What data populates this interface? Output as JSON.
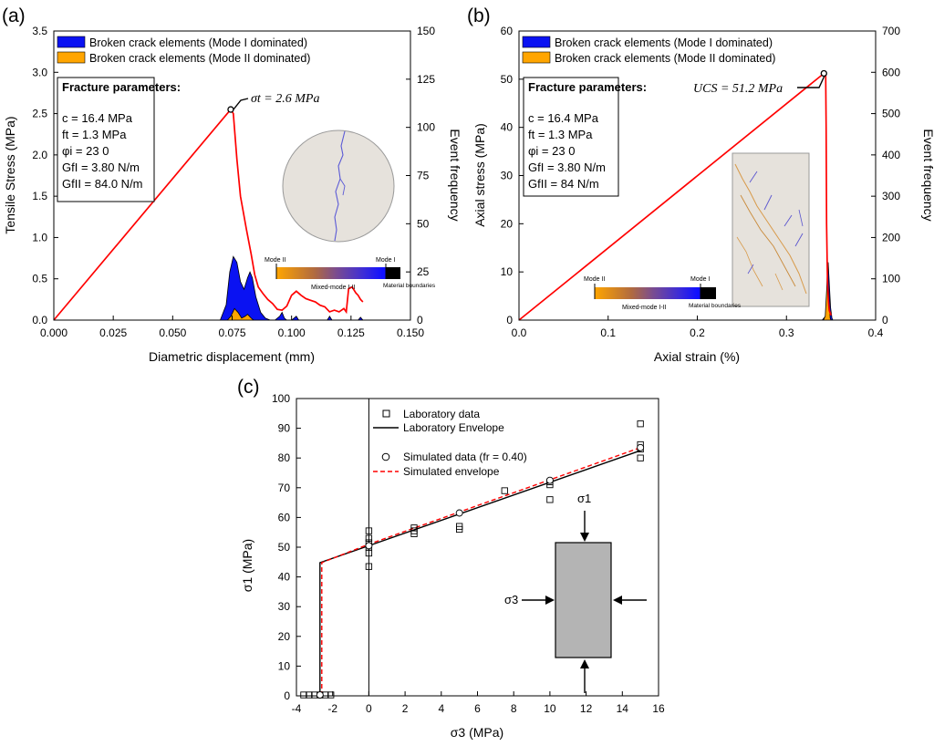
{
  "colors": {
    "mode_i_fill": "#0a12f2",
    "mode_ii_fill": "#ffa500",
    "curve": "#ff0000",
    "sim_envelope": "#ff0000",
    "specimen_fill": "#b4b4b4",
    "disc_fill": "#e6e2dc"
  },
  "panel_labels": [
    "(a)",
    "(b)",
    "(c)"
  ],
  "chart_data": [
    {
      "type": "line",
      "panel": "(a)",
      "title": "",
      "xlabel": "Diametric displacement (mm)",
      "ylabel": "Tensile Stress (MPa)",
      "y2label": "Event frequency",
      "xlim": [
        0.0,
        0.15
      ],
      "ylim": [
        0.0,
        3.5
      ],
      "y2lim": [
        0,
        150
      ],
      "xticks": [
        "0.000",
        "0.025",
        "0.050",
        "0.075",
        "0.100",
        "0.125",
        "0.150"
      ],
      "yticks": [
        "0.0",
        "0.5",
        "1.0",
        "1.5",
        "2.0",
        "2.5",
        "3.0",
        "3.5"
      ],
      "y2ticks": [
        "0",
        "25",
        "50",
        "75",
        "100",
        "125",
        "150"
      ],
      "legend": [
        "Broken crack elements (Mode I dominated)",
        "Broken crack elements (Mode II dominated)"
      ],
      "params": {
        "heading": "Fracture parameters:",
        "lines": [
          "c = 16.4 MPa",
          "ft = 1.3 MPa",
          "φi = 23 0",
          "GfI = 3.80 N/m",
          "GfII = 84.0 N/m"
        ]
      },
      "annotation": "σt = 2.6 MPa",
      "colorbar": {
        "left": "Mode II",
        "right": "Mode I",
        "middle": "Mixed-mode I-II",
        "end": "Material boundaries"
      },
      "curve": [
        [
          0.0,
          0.0
        ],
        [
          0.0744,
          2.55
        ],
        [
          0.0755,
          2.5
        ],
        [
          0.077,
          1.95
        ],
        [
          0.0785,
          1.5
        ],
        [
          0.081,
          1.1
        ],
        [
          0.083,
          0.8
        ],
        [
          0.0845,
          0.55
        ],
        [
          0.086,
          0.4
        ],
        [
          0.088,
          0.32
        ],
        [
          0.09,
          0.25
        ],
        [
          0.092,
          0.2
        ],
        [
          0.094,
          0.13
        ],
        [
          0.096,
          0.12
        ],
        [
          0.098,
          0.17
        ],
        [
          0.1,
          0.3
        ],
        [
          0.102,
          0.35
        ],
        [
          0.104,
          0.3
        ],
        [
          0.106,
          0.26
        ],
        [
          0.108,
          0.24
        ],
        [
          0.11,
          0.22
        ],
        [
          0.112,
          0.18
        ],
        [
          0.114,
          0.16
        ],
        [
          0.116,
          0.1
        ],
        [
          0.118,
          0.12
        ],
        [
          0.12,
          0.1
        ],
        [
          0.122,
          0.14
        ],
        [
          0.123,
          0.1
        ],
        [
          0.124,
          0.38
        ],
        [
          0.1255,
          0.4
        ],
        [
          0.127,
          0.33
        ],
        [
          0.128,
          0.3
        ],
        [
          0.129,
          0.25
        ],
        [
          0.13,
          0.22
        ]
      ],
      "mode_i_events": [
        [
          0.07,
          0
        ],
        [
          0.0725,
          8
        ],
        [
          0.074,
          25
        ],
        [
          0.0755,
          33
        ],
        [
          0.077,
          30
        ],
        [
          0.0785,
          20
        ],
        [
          0.08,
          16
        ],
        [
          0.0815,
          22
        ],
        [
          0.0825,
          25
        ],
        [
          0.0835,
          22
        ],
        [
          0.085,
          12
        ],
        [
          0.087,
          4
        ],
        [
          0.089,
          1
        ],
        [
          0.091,
          0
        ],
        [
          0.093,
          0
        ],
        [
          0.095,
          2
        ],
        [
          0.096,
          4
        ],
        [
          0.097,
          1
        ],
        [
          0.098,
          0
        ],
        [
          0.1,
          0
        ],
        [
          0.102,
          2
        ],
        [
          0.103,
          0
        ],
        [
          0.115,
          0
        ],
        [
          0.116,
          2
        ],
        [
          0.117,
          0
        ],
        [
          0.128,
          0
        ],
        [
          0.129,
          1.5
        ],
        [
          0.13,
          0
        ]
      ],
      "mode_ii_events": [
        [
          0.073,
          0
        ],
        [
          0.0745,
          2
        ],
        [
          0.076,
          6
        ],
        [
          0.0775,
          4
        ],
        [
          0.079,
          1
        ],
        [
          0.0805,
          2
        ],
        [
          0.0815,
          3
        ],
        [
          0.083,
          1
        ],
        [
          0.084,
          0
        ]
      ]
    },
    {
      "type": "line",
      "panel": "(b)",
      "title": "",
      "xlabel": "Axial strain (%)",
      "ylabel": "Axial stress (MPa)",
      "y2label": "Event frequency",
      "xlim": [
        0.0,
        0.4
      ],
      "ylim": [
        0,
        60
      ],
      "y2lim": [
        0,
        700
      ],
      "xticks": [
        "0.0",
        "0.1",
        "0.2",
        "0.3",
        "0.4"
      ],
      "yticks": [
        "0",
        "10",
        "20",
        "30",
        "40",
        "50",
        "60"
      ],
      "y2ticks": [
        "0",
        "100",
        "200",
        "300",
        "400",
        "500",
        "600",
        "700"
      ],
      "legend": [
        "Broken crack elements (Mode I dominated)",
        "Broken crack elements (Mode II dominated)"
      ],
      "params": {
        "heading": "Fracture parameters:",
        "lines": [
          "c = 16.4 MPa",
          "ft = 1.3 MPa",
          "φi = 23 0",
          "GfI = 3.80 N/m",
          "GfII = 84 N/m"
        ]
      },
      "annotation": "UCS = 51.2 MPa",
      "colorbar": {
        "left": "Mode II",
        "right": "Mode I",
        "middle": "Mixed-mode I-II",
        "end": "Material boundaries"
      },
      "curve": [
        [
          0.0,
          0.0
        ],
        [
          0.342,
          51.2
        ],
        [
          0.344,
          50.8
        ],
        [
          0.3445,
          40
        ],
        [
          0.345,
          20
        ],
        [
          0.346,
          8
        ],
        [
          0.347,
          4
        ],
        [
          0.348,
          2
        ],
        [
          0.35,
          1
        ]
      ],
      "mode_i_events": [
        [
          0.34,
          0
        ],
        [
          0.344,
          10
        ],
        [
          0.3455,
          60
        ],
        [
          0.3468,
          140
        ],
        [
          0.348,
          90
        ],
        [
          0.3495,
          30
        ],
        [
          0.351,
          5
        ],
        [
          0.352,
          0
        ]
      ],
      "mode_ii_events": [
        [
          0.3415,
          0
        ],
        [
          0.3435,
          10
        ],
        [
          0.345,
          70
        ],
        [
          0.346,
          125
        ],
        [
          0.3475,
          60
        ],
        [
          0.349,
          5
        ],
        [
          0.35,
          0
        ]
      ]
    },
    {
      "type": "scatter",
      "panel": "(c)",
      "title": "",
      "xlabel": "σ3 (MPa)",
      "ylabel": "σ1 (MPa)",
      "xlim": [
        -4,
        16
      ],
      "ylim": [
        0,
        100
      ],
      "xticks": [
        "-4",
        "-2",
        "0",
        "2",
        "4",
        "6",
        "8",
        "10",
        "12",
        "14",
        "16"
      ],
      "yticks": [
        "0",
        "10",
        "20",
        "30",
        "40",
        "50",
        "60",
        "70",
        "80",
        "90",
        "100"
      ],
      "legend": [
        "Laboratory data",
        "Laboratory Envelope",
        "Simulated data (fr = 0.40)",
        "Simulated envelope"
      ],
      "laboratory_data": [
        [
          -3.6,
          0.3
        ],
        [
          -3.3,
          0.3
        ],
        [
          -3.0,
          0.3
        ],
        [
          -2.7,
          0.3
        ],
        [
          -2.4,
          0.3
        ],
        [
          -2.1,
          0.3
        ],
        [
          0,
          43.5
        ],
        [
          0,
          48
        ],
        [
          0,
          50
        ],
        [
          0,
          51.5
        ],
        [
          0,
          53
        ],
        [
          0,
          55.5
        ],
        [
          2.5,
          54.5
        ],
        [
          2.5,
          55.5
        ],
        [
          2.5,
          56.5
        ],
        [
          5,
          56
        ],
        [
          5,
          57
        ],
        [
          7.5,
          69
        ],
        [
          10,
          66
        ],
        [
          10,
          71
        ],
        [
          10,
          72
        ],
        [
          15,
          80
        ],
        [
          15,
          83
        ],
        [
          15,
          84.5
        ],
        [
          15,
          91.5
        ]
      ],
      "laboratory_envelope": [
        [
          -2.7,
          0
        ],
        [
          -2.7,
          44.8
        ],
        [
          0,
          50.5
        ],
        [
          15,
          82.5
        ]
      ],
      "simulated_data": [
        [
          -2.7,
          0.3
        ],
        [
          0,
          50.5
        ],
        [
          5,
          61.5
        ],
        [
          10,
          72.5
        ],
        [
          15,
          83.5
        ]
      ],
      "simulated_envelope": [
        [
          -2.6,
          0
        ],
        [
          -2.6,
          44.8
        ],
        [
          0,
          51.0
        ],
        [
          15,
          83.5
        ]
      ],
      "inset_labels": [
        "σ1",
        "σ3"
      ]
    }
  ]
}
